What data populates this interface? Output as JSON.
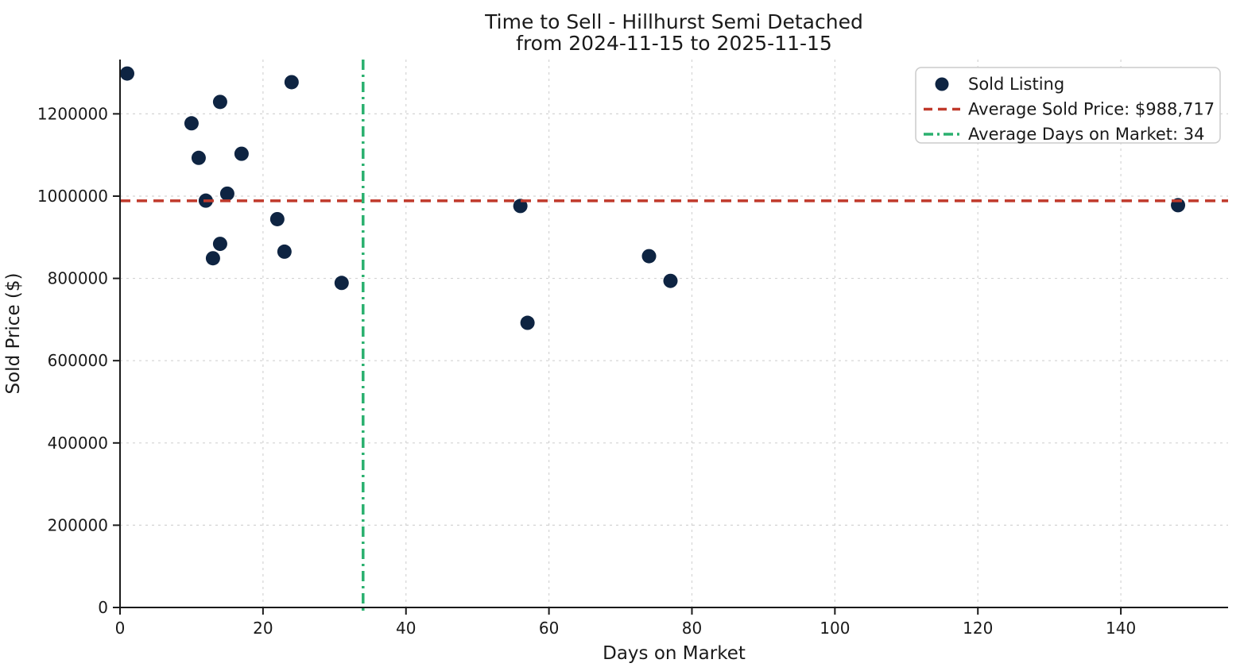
{
  "chart_data": {
    "type": "scatter",
    "title": "Time to Sell - Hillhurst Semi Detached",
    "subtitle": "from 2024-11-15 to 2025-11-15",
    "xlabel": "Days on Market",
    "ylabel": "Sold Price ($)",
    "xlim": [
      0,
      155
    ],
    "ylim": [
      0,
      1332000
    ],
    "xticks": [
      0,
      20,
      40,
      60,
      80,
      100,
      120,
      140
    ],
    "yticks": [
      0,
      200000,
      400000,
      600000,
      800000,
      1000000,
      1200000
    ],
    "grid": true,
    "grid_color": "#d4d4d4",
    "legend_position": "upper right",
    "series": [
      {
        "name": "Sold Listing",
        "type": "scatter",
        "color": "#0e2442",
        "marker": "circle",
        "points": [
          [
            1,
            1298000
          ],
          [
            10,
            1177000
          ],
          [
            11,
            1093000
          ],
          [
            12,
            989000
          ],
          [
            13,
            849000
          ],
          [
            14,
            1229000
          ],
          [
            14,
            884000
          ],
          [
            15,
            1006000
          ],
          [
            17,
            1103000
          ],
          [
            22,
            944000
          ],
          [
            23,
            865000
          ],
          [
            24,
            1277000
          ],
          [
            31,
            789000
          ],
          [
            56,
            976000
          ],
          [
            57,
            692000
          ],
          [
            74,
            854000
          ],
          [
            77,
            794000
          ],
          [
            148,
            978000
          ]
        ]
      }
    ],
    "reference_lines": [
      {
        "name": "average-sold-price",
        "orientation": "horizontal",
        "value": 988717,
        "label": "Average Sold Price: $988,717",
        "color": "#c0392b",
        "style": "dashed"
      },
      {
        "name": "average-days-on-market",
        "orientation": "vertical",
        "value": 34,
        "label": "Average Days on Market: 34",
        "color": "#2ab06f",
        "style": "dashdot"
      }
    ]
  }
}
